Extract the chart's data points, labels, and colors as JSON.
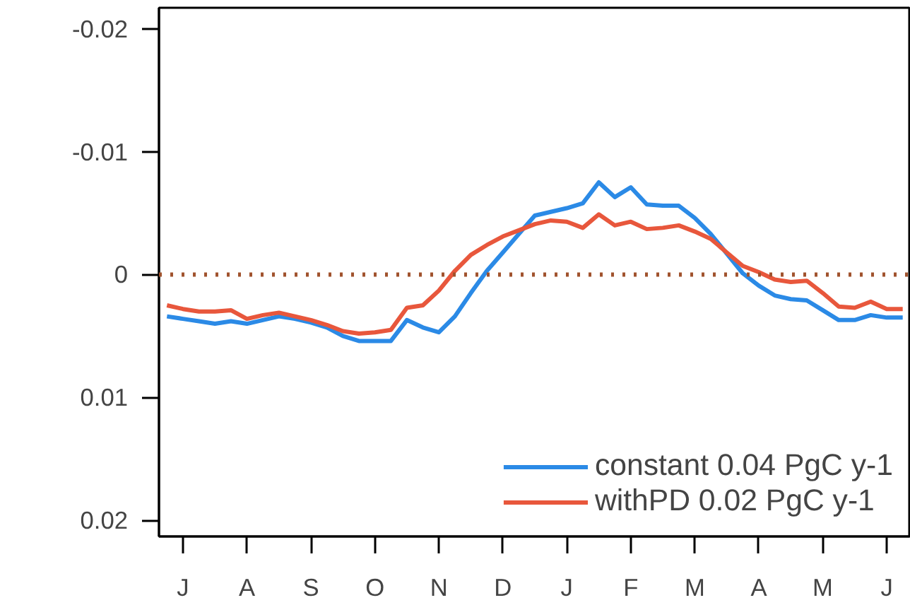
{
  "chart_data": {
    "type": "line",
    "ylim": [
      0.0213,
      -0.0217
    ],
    "categories": [
      null,
      "J",
      null,
      null,
      null,
      "A",
      null,
      null,
      null,
      "S",
      null,
      null,
      null,
      "O",
      null,
      null,
      null,
      "N",
      null,
      null,
      null,
      "D",
      null,
      null,
      null,
      "J",
      null,
      null,
      null,
      "F",
      null,
      null,
      null,
      "M",
      null,
      null,
      null,
      "A",
      null,
      null,
      null,
      "M",
      null,
      null,
      null,
      "J",
      null
    ],
    "yticks": [
      -0.02,
      -0.01,
      {
        "value": 0,
        "label": "0"
      },
      0.01,
      0.02
    ],
    "series": [
      {
        "name": "constant 0.04 PgC y-1",
        "color": "#2b8ae6",
        "values": [
          0.0034,
          0.0036,
          0.0038,
          0.004,
          0.0038,
          0.004,
          0.0037,
          0.0034,
          0.0036,
          0.0039,
          0.0043,
          0.005,
          0.0054,
          0.0054,
          0.0054,
          0.0037,
          0.0043,
          0.0047,
          0.0034,
          0.0015,
          -0.0003,
          -0.0018,
          -0.0033,
          -0.0048,
          -0.0051,
          -0.0054,
          -0.0058,
          -0.0075,
          -0.0063,
          -0.0071,
          -0.0057,
          -0.0056,
          -0.0056,
          -0.0046,
          -0.0033,
          -0.0017,
          -0.0001,
          0.0009,
          0.0017,
          0.002,
          0.0021,
          0.0029,
          0.0037,
          0.0037,
          0.0033,
          0.0035,
          0.0035
        ]
      },
      {
        "name": "withPD 0.02 PgC y-1",
        "color": "#e8573c",
        "values": [
          0.0025,
          0.0028,
          0.003,
          0.003,
          0.0029,
          0.0036,
          0.0033,
          0.0031,
          0.0034,
          0.0037,
          0.0041,
          0.0046,
          0.0048,
          0.0047,
          0.0045,
          0.0027,
          0.0025,
          0.0013,
          -0.0003,
          -0.0016,
          -0.0024,
          -0.0031,
          -0.0036,
          -0.0041,
          -0.0044,
          -0.0043,
          -0.0038,
          -0.0049,
          -0.004,
          -0.0043,
          -0.0037,
          -0.0038,
          -0.004,
          -0.0035,
          -0.0029,
          -0.0018,
          -0.0007,
          -0.0002,
          0.0004,
          0.0006,
          0.0005,
          0.0015,
          0.0026,
          0.0027,
          0.0022,
          0.0028,
          0.0028
        ]
      }
    ],
    "ref_lines": [
      {
        "axis": "y",
        "value": 0,
        "color": "#a0522d",
        "line_style": "dotted"
      }
    ],
    "legend": "bottom right",
    "grid": false
  }
}
